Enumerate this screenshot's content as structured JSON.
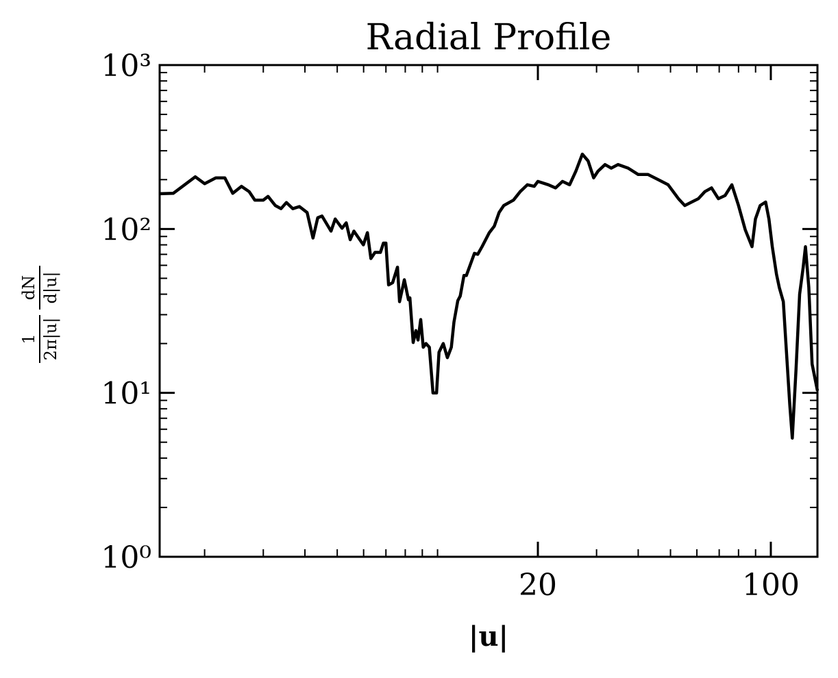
{
  "chart_data": {
    "type": "line",
    "title": "Radial Profile",
    "xlabel": "|u|",
    "ylabel": {
      "numerator_1": "1",
      "denominator_1": "2π|u|",
      "numerator_2": "dN",
      "denominator_2": "d|u|"
    },
    "xlog": true,
    "ylog": true,
    "color": "#000000",
    "x": [
      1.466,
      1.61,
      1.875,
      2.0,
      2.16,
      2.3,
      2.43,
      2.58,
      2.72,
      2.83,
      3.0,
      3.1,
      3.26,
      3.39,
      3.52,
      3.68,
      3.85,
      4.06,
      4.23,
      4.37,
      4.5,
      4.79,
      4.93,
      5.17,
      5.32,
      5.47,
      5.61,
      5.99,
      6.16,
      6.31,
      6.49,
      6.74,
      6.88,
      7.0,
      7.13,
      7.33,
      7.58,
      7.69,
      7.95,
      8.18,
      8.26,
      8.45,
      8.61,
      8.74,
      8.9,
      9.06,
      9.23,
      9.45,
      9.69,
      9.93,
      10.1,
      10.4,
      10.7,
      11.0,
      11.2,
      11.5,
      11.7,
      12.0,
      12.2,
      12.9,
      13.2,
      13.6,
      14.3,
      14.8,
      15.3,
      15.8,
      16.9,
      17.7,
      18.6,
      19.5,
      20,
      21.5,
      22.6,
      23.7,
      24.9,
      26.0,
      27.2,
      28.3,
      29.4,
      30.3,
      31.8,
      33.2,
      34.8,
      37.3,
      40.0,
      42.8,
      45.9,
      49.2,
      52.8,
      55.2,
      57.9,
      60.6,
      63.4,
      66.4,
      69.6,
      72.9,
      76.4,
      80.0,
      83.8,
      87.8,
      89.9,
      92.9,
      96.5,
      98.7,
      101,
      104,
      106,
      109,
      111,
      114,
      116,
      119,
      122,
      125,
      127,
      130,
      133,
      138
    ],
    "values": [
      164,
      165,
      208,
      189,
      205,
      205,
      165,
      182,
      169,
      150,
      150,
      158,
      139,
      133,
      145,
      133,
      137,
      126,
      88,
      117,
      120,
      97,
      115,
      101,
      109,
      86,
      97,
      80,
      95,
      66,
      72,
      72,
      82,
      82,
      45.6,
      47,
      58.5,
      36,
      49,
      37,
      38,
      20.3,
      24,
      21,
      28,
      19,
      20,
      19,
      10,
      10,
      17.7,
      20,
      16.4,
      19,
      27,
      36.5,
      39,
      52,
      52,
      71,
      70,
      78,
      95,
      104,
      126,
      139,
      150,
      169,
      186,
      182,
      195,
      186,
      178,
      195,
      186,
      225,
      286,
      260,
      205,
      225,
      247,
      235,
      247,
      235,
      215,
      215,
      200,
      186,
      153,
      139,
      146,
      153,
      169,
      178,
      153,
      160,
      186,
      139,
      99,
      78,
      115,
      139,
      146,
      115,
      78,
      53,
      44,
      36,
      20,
      8.5,
      5.3,
      13.8,
      40,
      58,
      78,
      44,
      15,
      10.3
    ],
    "xlim": [
      1.466,
      138
    ],
    "ylim": [
      1,
      1000
    ],
    "xticks": [
      20,
      100
    ],
    "xminorticks": [
      2,
      3,
      4,
      5,
      6,
      7,
      8,
      9,
      10,
      30,
      40,
      50,
      60,
      70,
      80,
      90
    ],
    "yticks": [
      {
        "value": 1,
        "label": "10⁰"
      },
      {
        "value": 10,
        "label": "10¹"
      },
      {
        "value": 100,
        "label": "10²"
      },
      {
        "value": 1000,
        "label": "10³"
      }
    ],
    "yminorticks": [
      2,
      3,
      4,
      5,
      6,
      7,
      8,
      9,
      20,
      30,
      40,
      50,
      60,
      70,
      80,
      90,
      200,
      300,
      400,
      500,
      600,
      700,
      800,
      900
    ]
  }
}
